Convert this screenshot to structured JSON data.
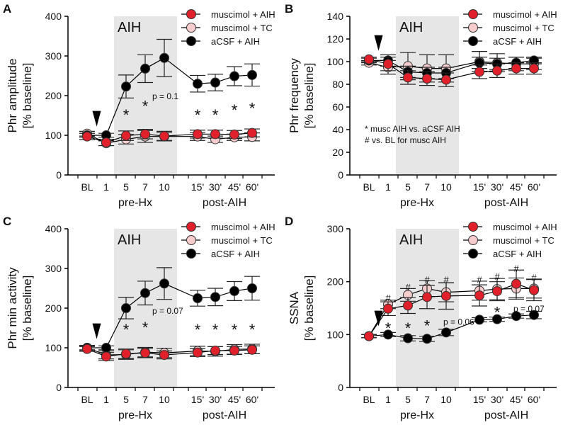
{
  "chart_data": [
    {
      "panel": "A",
      "type": "line",
      "ylabel": [
        "Phr amplitude",
        "[% baseline]"
      ],
      "ylim": [
        0,
        400
      ],
      "yticks": [
        0,
        100,
        200,
        300,
        400
      ],
      "categories": [
        "BL",
        "1",
        "5",
        "7",
        "10",
        "15'",
        "30'",
        "45'",
        "60'"
      ],
      "group_labels": [
        "pre-Hx",
        "post-AIH"
      ],
      "shade_label": "AIH",
      "series": [
        {
          "name": "muscimol + AIH",
          "color": "#e0202a",
          "values": [
            97,
            82,
            99,
            103,
            98,
            103,
            103,
            102,
            106
          ],
          "err": [
            8,
            8,
            12,
            12,
            12,
            10,
            10,
            10,
            10
          ]
        },
        {
          "name": "muscimol + TC",
          "color": "#f7cccc",
          "values": [
            104,
            80,
            90,
            97,
            97,
            97,
            90,
            95,
            96
          ],
          "err": [
            6,
            6,
            12,
            15,
            10,
            10,
            8,
            8,
            10
          ]
        },
        {
          "name": "aCSF + AIH",
          "color": "#000000",
          "values": [
            100,
            100,
            223,
            268,
            295,
            230,
            233,
            249,
            252
          ],
          "err": [
            5,
            5,
            29,
            35,
            47,
            21,
            21,
            24,
            28
          ]
        }
      ],
      "marks": [
        {
          "text": "*",
          "x": "5",
          "y": 155
        },
        {
          "text": "*",
          "x": "7",
          "y": 178
        },
        {
          "text": "*",
          "x": "15'",
          "y": 155
        },
        {
          "text": "*",
          "x": "30'",
          "y": 155
        },
        {
          "text": "*",
          "x": "45'",
          "y": 168
        },
        {
          "text": "*",
          "x": "60'",
          "y": 172
        },
        {
          "text": "p = 0.1",
          "x": "10",
          "y": 200
        }
      ]
    },
    {
      "panel": "B",
      "type": "line",
      "ylabel": [
        "Phr frequency",
        "[% baseline]"
      ],
      "ylim": [
        0,
        140
      ],
      "yticks": [
        0,
        20,
        40,
        60,
        80,
        100,
        120,
        140
      ],
      "categories": [
        "BL",
        "1",
        "5",
        "7",
        "10",
        "15'",
        "30'",
        "45'",
        "60'"
      ],
      "group_labels": [
        "pre-Hx",
        "post-AIH"
      ],
      "shade_label": "AIH",
      "series": [
        {
          "name": "muscimol + AIH",
          "color": "#e0202a",
          "values": [
            102,
            98,
            86,
            85,
            84,
            91,
            92,
            94,
            94
          ],
          "err": [
            2,
            6,
            6,
            6,
            6,
            6,
            6,
            5,
            5
          ]
        },
        {
          "name": "muscimol + TC",
          "color": "#f7cccc",
          "values": [
            99,
            95,
            96,
            94,
            94,
            100,
            99,
            98,
            98
          ],
          "err": [
            2,
            6,
            12,
            12,
            12,
            9,
            8,
            6,
            5
          ]
        },
        {
          "name": "aCSF + AIH",
          "color": "#000000",
          "values": [
            101,
            101,
            91,
            90,
            90,
            99,
            98,
            99,
            101
          ],
          "err": [
            2,
            5,
            5,
            5,
            5,
            5,
            5,
            5,
            3
          ]
        }
      ],
      "notes": [
        "* musc AIH vs. aCSF AIH",
        "# vs. BL for musc AIH"
      ],
      "marks": []
    },
    {
      "panel": "C",
      "type": "line",
      "ylabel": [
        "Phr min activity",
        "[% baseline]"
      ],
      "ylim": [
        0,
        400
      ],
      "yticks": [
        0,
        100,
        200,
        300,
        400
      ],
      "categories": [
        "BL",
        "1",
        "5",
        "7",
        "10",
        "15'",
        "30'",
        "45'",
        "60'"
      ],
      "group_labels": [
        "pre-Hx",
        "post-AIH"
      ],
      "shade_label": "AIH",
      "series": [
        {
          "name": "muscimol + AIH",
          "color": "#e0202a",
          "values": [
            97,
            78,
            85,
            87,
            82,
            88,
            93,
            93,
            95
          ],
          "err": [
            6,
            10,
            12,
            12,
            10,
            10,
            10,
            10,
            10
          ]
        },
        {
          "name": "muscimol + TC",
          "color": "#f7cccc",
          "values": [
            100,
            82,
            83,
            89,
            87,
            92,
            91,
            96,
            97
          ],
          "err": [
            6,
            10,
            12,
            12,
            12,
            12,
            12,
            12,
            12
          ]
        },
        {
          "name": "aCSF + AIH",
          "color": "#000000",
          "values": [
            100,
            100,
            200,
            238,
            262,
            225,
            228,
            243,
            250
          ],
          "err": [
            5,
            5,
            27,
            30,
            40,
            20,
            22,
            24,
            30
          ]
        }
      ],
      "marks": [
        {
          "text": "*",
          "x": "5",
          "y": 150
        },
        {
          "text": "*",
          "x": "7",
          "y": 155
        },
        {
          "text": "*",
          "x": "15'",
          "y": 150
        },
        {
          "text": "*",
          "x": "30'",
          "y": 150
        },
        {
          "text": "*",
          "x": "45'",
          "y": 150
        },
        {
          "text": "*",
          "x": "60'",
          "y": 150
        },
        {
          "text": "p = 0.07",
          "x": "10",
          "y": 195
        }
      ]
    },
    {
      "panel": "D",
      "type": "line",
      "ylabel": [
        "SSNA",
        "[% baseline]"
      ],
      "ylim": [
        0,
        300
      ],
      "yticks": [
        0,
        100,
        200,
        300
      ],
      "categories": [
        "BL",
        "1",
        "5",
        "7",
        "10",
        "15'",
        "30'",
        "45'",
        "60'"
      ],
      "group_labels": [
        "pre-Hx",
        "post-AIH"
      ],
      "shade_label": "AIH",
      "series": [
        {
          "name": "muscimol + AIH",
          "color": "#e0202a",
          "values": [
            97,
            149,
            155,
            171,
            173,
            174,
            182,
            196,
            184
          ],
          "err": [
            3,
            13,
            15,
            22,
            25,
            20,
            18,
            26,
            20
          ]
        },
        {
          "name": "muscimol + TC",
          "color": "#f7cccc",
          "values": [
            97,
            157,
            175,
            187,
            180,
            183,
            186,
            187,
            187
          ],
          "err": [
            3,
            8,
            12,
            15,
            18,
            18,
            20,
            20,
            18
          ]
        },
        {
          "name": "aCSF + AIH",
          "color": "#000000",
          "values": [
            97,
            100,
            93,
            92,
            104,
            128,
            129,
            135,
            137
          ],
          "err": [
            3,
            4,
            5,
            5,
            6,
            4,
            4,
            4,
            7
          ]
        }
      ],
      "marks": [
        {
          "text": "#",
          "x": "1",
          "y": 170
        },
        {
          "text": "#",
          "x": "5",
          "y": 190
        },
        {
          "text": "#",
          "x": "7",
          "y": 204
        },
        {
          "text": "#",
          "x": "10",
          "y": 204
        },
        {
          "text": "#",
          "x": "15'",
          "y": 204
        },
        {
          "text": "#",
          "x": "30'",
          "y": 210
        },
        {
          "text": "#",
          "x": "45'",
          "y": 226
        },
        {
          "text": "#",
          "x": "60'",
          "y": 208
        },
        {
          "text": "*",
          "x": "1",
          "y": 115
        },
        {
          "text": "*",
          "x": "5",
          "y": 115
        },
        {
          "text": "*",
          "x": "7",
          "y": 120
        },
        {
          "text": "*",
          "x": "30'",
          "y": 145
        },
        {
          "text": "p = 0.06",
          "x": "10",
          "y": 125
        },
        {
          "text": "p = 0.07",
          "x": "45'",
          "y": 150
        }
      ]
    }
  ]
}
